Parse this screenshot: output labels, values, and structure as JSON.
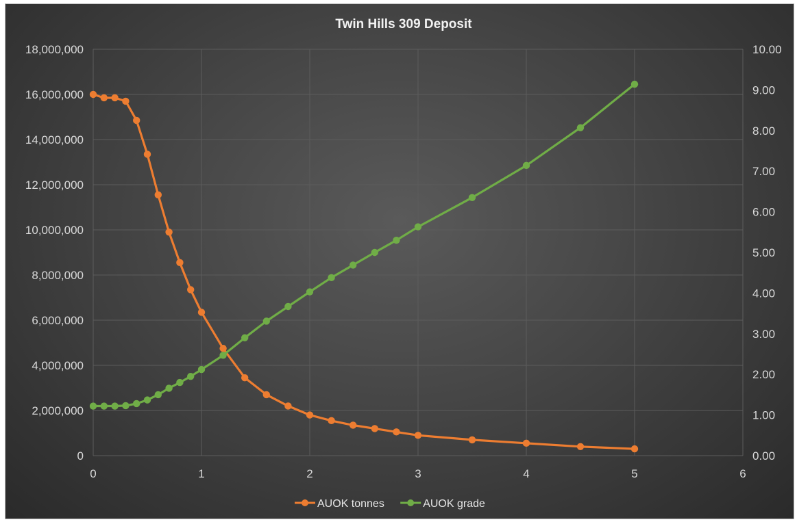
{
  "chart_data": {
    "type": "line",
    "title": "Twin Hills 309 Deposit",
    "xlabel": "",
    "ylabel": "",
    "xlim": [
      0,
      6
    ],
    "x_ticks": [
      "0",
      "1",
      "2",
      "3",
      "4",
      "5",
      "6"
    ],
    "ylim_left": [
      0,
      18000000
    ],
    "ylim_right": [
      0,
      10
    ],
    "y_left_ticks": [
      "0",
      "2,000,000",
      "4,000,000",
      "6,000,000",
      "8,000,000",
      "10,000,000",
      "12,000,000",
      "14,000,000",
      "16,000,000",
      "18,000,000"
    ],
    "y_right_ticks": [
      "0.00",
      "1.00",
      "2.00",
      "3.00",
      "4.00",
      "5.00",
      "6.00",
      "7.00",
      "8.00",
      "9.00",
      "10.00"
    ],
    "grid": "horizontal and vertical",
    "legend_position": "bottom",
    "series": [
      {
        "name": "AUOK tonnes",
        "axis": "left",
        "color": "#ed7d31",
        "x": [
          0,
          0.1,
          0.2,
          0.3,
          0.4,
          0.5,
          0.6,
          0.7,
          0.8,
          0.9,
          1.0,
          1.2,
          1.4,
          1.6,
          1.8,
          2.0,
          2.2,
          2.4,
          2.6,
          2.8,
          3.0,
          3.5,
          4.0,
          4.5,
          5.0
        ],
        "values": [
          16000000,
          15850000,
          15850000,
          15700000,
          14850000,
          13350000,
          11550000,
          9900000,
          8550000,
          7350000,
          6350000,
          4750000,
          3450000,
          2700000,
          2200000,
          1800000,
          1550000,
          1350000,
          1200000,
          1050000,
          900000,
          700000,
          550000,
          400000,
          300000
        ]
      },
      {
        "name": "AUOK grade",
        "axis": "right",
        "color": "#70ad47",
        "x": [
          0,
          0.1,
          0.2,
          0.3,
          0.4,
          0.5,
          0.6,
          0.7,
          0.8,
          0.9,
          1.0,
          1.2,
          1.4,
          1.6,
          1.8,
          2.0,
          2.2,
          2.4,
          2.6,
          2.8,
          3.0,
          3.5,
          4.0,
          4.5,
          5.0
        ],
        "values": [
          1.22,
          1.22,
          1.22,
          1.23,
          1.28,
          1.37,
          1.5,
          1.66,
          1.8,
          1.95,
          2.12,
          2.47,
          2.9,
          3.31,
          3.67,
          4.03,
          4.38,
          4.69,
          5.0,
          5.3,
          5.63,
          6.35,
          7.14,
          8.07,
          9.14
        ]
      }
    ]
  }
}
